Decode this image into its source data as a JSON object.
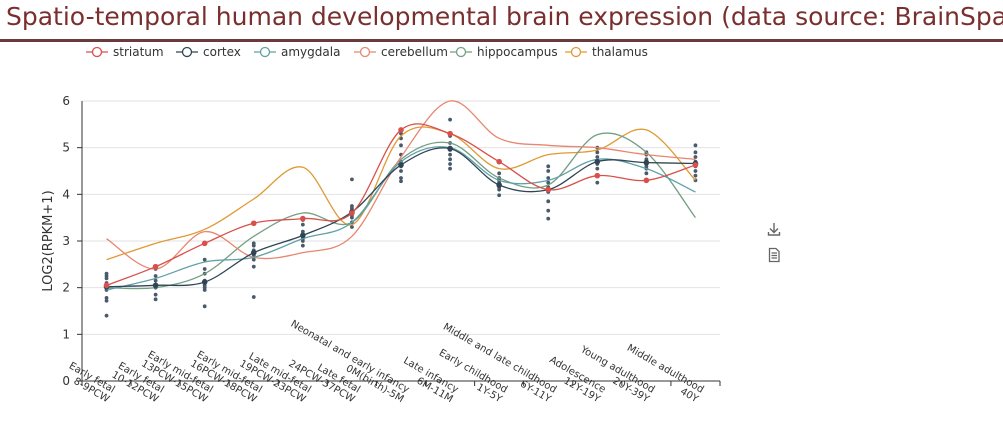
{
  "page_title": "Spatio-temporal human developmental brain expression (data source: BrainSpan)",
  "toolbox": {
    "download_icon": "download-icon",
    "data_view_icon": "data-view-icon"
  },
  "chart_data": {
    "type": "line",
    "title": "Spatio-temporal human developmental brain expression (data source: BrainSpan)",
    "ylabel": "LOG2(RPKM+1)",
    "xlabel": "",
    "ylim": [
      0,
      6
    ],
    "yticks": [
      "0",
      "1",
      "2",
      "3",
      "4",
      "5",
      "6"
    ],
    "grid": true,
    "legend_position": "top",
    "categories": [
      [
        "Early fetal",
        "8-9PCW"
      ],
      [
        "Early fetal",
        "10-12PCW"
      ],
      [
        "Early mid-fetal",
        "13PCW-15PCW"
      ],
      [
        "Early mid-fetal",
        "16PCW-18PCW"
      ],
      [
        "Late mid-fetal",
        "19PCW-23PCW"
      ],
      [
        "Late fetal",
        "24PCW-37PCW"
      ],
      [
        "Neonatal and early infancy",
        "0M(birth)-5M"
      ],
      [
        "Late infancy",
        "6M-11M"
      ],
      [
        "Early childhood",
        "1Y-5Y"
      ],
      [
        "Middle and late childhood",
        "6Y-11Y"
      ],
      [
        "Adolescence",
        "12Y-19Y"
      ],
      [
        "Young adulthood",
        "20Y-39Y"
      ],
      [
        "Middle adulthood",
        "40Y"
      ]
    ],
    "series": [
      {
        "name": "striatum",
        "color": "#d94f4a",
        "marker": "filled",
        "values": [
          2.05,
          2.45,
          2.95,
          3.38,
          3.48,
          3.6,
          5.38,
          5.3,
          4.7,
          4.1,
          4.4,
          4.3,
          4.63
        ]
      },
      {
        "name": "cortex",
        "color": "#2f4554",
        "marker": "filled",
        "values": [
          2.02,
          2.05,
          2.12,
          2.75,
          3.12,
          3.62,
          4.63,
          4.98,
          4.2,
          4.1,
          4.7,
          4.68,
          4.66
        ]
      },
      {
        "name": "amygdala",
        "color": "#61a0a8",
        "marker": "none",
        "values": [
          1.95,
          2.2,
          2.55,
          2.65,
          3.05,
          3.4,
          4.7,
          5.0,
          4.3,
          4.3,
          4.75,
          4.55,
          4.05
        ]
      },
      {
        "name": "cerebellum",
        "color": "#e8866f",
        "marker": "none",
        "values": [
          3.05,
          2.4,
          3.2,
          2.65,
          2.75,
          3.1,
          4.8,
          6.0,
          5.2,
          5.05,
          5.0,
          4.85,
          4.75
        ]
      },
      {
        "name": "hippocampus",
        "color": "#749f83",
        "marker": "none",
        "values": [
          2.0,
          2.0,
          2.3,
          3.1,
          3.6,
          3.4,
          4.75,
          5.1,
          4.35,
          4.2,
          5.28,
          4.9,
          3.5
        ]
      },
      {
        "name": "thalamus",
        "color": "#e09a35",
        "marker": "none",
        "values": [
          2.6,
          2.95,
          3.25,
          3.9,
          4.58,
          3.35,
          5.25,
          5.3,
          4.55,
          4.85,
          4.95,
          5.38,
          4.3
        ]
      }
    ],
    "scatter_points": [
      [
        1.4,
        1.72,
        1.78,
        1.95,
        2.02,
        2.1,
        2.2,
        2.25,
        2.3
      ],
      [
        1.75,
        1.85,
        2.0,
        2.05,
        2.15,
        2.25,
        2.4,
        2.45
      ],
      [
        1.6,
        1.95,
        2.0,
        2.05,
        2.1,
        2.15,
        2.3,
        2.4,
        2.6
      ],
      [
        1.8,
        2.45,
        2.6,
        2.7,
        2.75,
        2.8,
        2.9,
        2.95
      ],
      [
        2.9,
        3.0,
        3.05,
        3.1,
        3.15,
        3.2,
        3.35,
        3.45
      ],
      [
        3.3,
        3.4,
        3.5,
        3.55,
        3.6,
        3.65,
        3.7,
        3.75,
        4.32
      ],
      [
        4.28,
        4.35,
        4.5,
        4.6,
        4.7,
        4.85,
        5.05,
        5.2,
        5.3
      ],
      [
        4.55,
        4.65,
        4.75,
        4.85,
        4.95,
        5.0,
        5.1,
        5.25,
        5.6
      ],
      [
        3.98,
        4.1,
        4.15,
        4.2,
        4.25,
        4.3,
        4.35,
        4.45
      ],
      [
        3.48,
        3.65,
        3.85,
        4.05,
        4.15,
        4.25,
        4.35,
        4.5,
        4.6
      ],
      [
        4.25,
        4.4,
        4.55,
        4.65,
        4.7,
        4.8,
        4.9,
        5.0
      ],
      [
        4.45,
        4.55,
        4.6,
        4.65,
        4.7,
        4.75,
        4.85,
        4.9
      ],
      [
        4.3,
        4.4,
        4.5,
        4.6,
        4.65,
        4.7,
        4.8,
        4.9,
        5.05
      ]
    ]
  }
}
